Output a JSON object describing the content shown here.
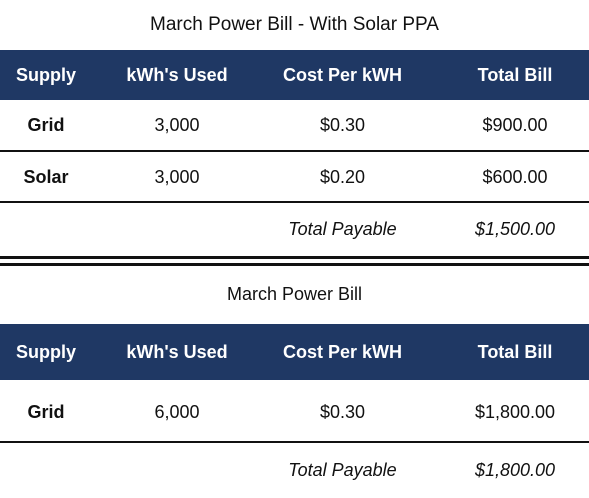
{
  "table1": {
    "title": "March Power Bill - With Solar PPA",
    "headers": [
      "Supply",
      "kWh's Used",
      "Cost Per kWH",
      "Total Bill"
    ],
    "rows": [
      {
        "supply": "Grid",
        "kwh": "3,000",
        "cost": "$0.30",
        "total": "$900.00"
      },
      {
        "supply": "Solar",
        "kwh": "3,000",
        "cost": "$0.20",
        "total": "$600.00"
      }
    ],
    "total_label": "Total Payable",
    "total_value": "$1,500.00"
  },
  "table2": {
    "title": "March Power Bill",
    "headers": [
      "Supply",
      "kWh's Used",
      "Cost Per kWH",
      "Total Bill"
    ],
    "rows": [
      {
        "supply": "Grid",
        "kwh": "6,000",
        "cost": "$0.30",
        "total": "$1,800.00"
      }
    ],
    "total_label": "Total Payable",
    "total_value": "$1,800.00"
  },
  "colors": {
    "header_bg": "#1f3864",
    "header_text": "#ffffff",
    "rule": "#111111"
  }
}
